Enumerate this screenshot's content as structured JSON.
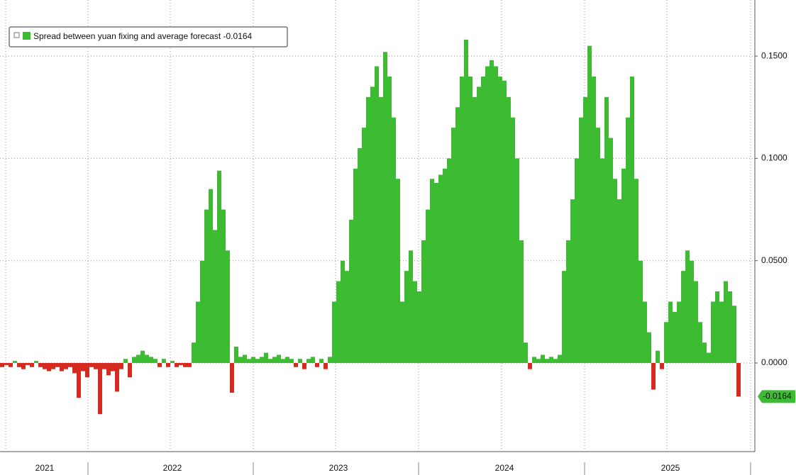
{
  "chart_data": {
    "type": "bar",
    "series": [
      {
        "name": "Spread between yuan fixing and average forecast -0.0164",
        "color": "#3dbb33",
        "neg_color": "#d42a1f",
        "values": [
          -0.002,
          -0.001,
          -0.002,
          0.001,
          -0.002,
          -0.003,
          -0.001,
          -0.002,
          0.001,
          -0.002,
          -0.003,
          -0.004,
          -0.003,
          -0.002,
          -0.004,
          -0.003,
          -0.002,
          -0.005,
          -0.017,
          -0.004,
          -0.007,
          -0.002,
          -0.003,
          -0.025,
          -0.003,
          -0.006,
          -0.004,
          -0.014,
          -0.003,
          0.002,
          -0.007,
          0.003,
          0.004,
          0.006,
          0.004,
          0.003,
          0.002,
          -0.002,
          0.002,
          -0.002,
          0.001,
          -0.002,
          -0.001,
          -0.002,
          -0.002,
          0.01,
          0.03,
          0.05,
          0.075,
          0.085,
          0.065,
          0.094,
          0.075,
          0.055,
          -0.0145,
          0.008,
          0.003,
          0.004,
          0.002,
          0.003,
          0.002,
          0.003,
          0.005,
          0.002,
          0.003,
          0.004,
          0.002,
          0.003,
          0.002,
          -0.002,
          0.002,
          -0.003,
          0.002,
          0.003,
          -0.002,
          0.002,
          -0.003,
          0.003,
          0.03,
          0.04,
          0.05,
          0.045,
          0.07,
          0.095,
          0.105,
          0.115,
          0.13,
          0.135,
          0.145,
          0.13,
          0.152,
          0.14,
          0.12,
          0.09,
          0.03,
          0.045,
          0.055,
          0.04,
          0.035,
          0.06,
          0.075,
          0.09,
          0.088,
          0.092,
          0.095,
          0.1,
          0.115,
          0.125,
          0.14,
          0.158,
          0.14,
          0.13,
          0.135,
          0.14,
          0.145,
          0.148,
          0.145,
          0.14,
          0.138,
          0.13,
          0.12,
          0.1,
          0.06,
          0.01,
          -0.003,
          0.003,
          0.002,
          0.004,
          0.002,
          0.003,
          0.002,
          0.004,
          0.045,
          0.06,
          0.08,
          0.1,
          0.12,
          0.13,
          0.155,
          0.14,
          0.115,
          0.1,
          0.13,
          0.11,
          0.09,
          0.08,
          0.095,
          0.12,
          0.14,
          0.09,
          0.05,
          0.03,
          0.015,
          -0.013,
          0.006,
          -0.003,
          0.02,
          0.03,
          0.025,
          0.03,
          0.045,
          0.055,
          0.05,
          0.04,
          0.02,
          0.01,
          0.005,
          0.03,
          0.035,
          0.03,
          0.04,
          0.035,
          0.028,
          -0.0164
        ]
      }
    ],
    "categories": [
      null,
      null,
      null,
      null,
      null,
      null,
      null,
      null,
      null,
      null,
      "2021",
      null,
      null,
      null,
      null,
      null,
      null,
      null,
      null,
      null,
      null,
      null,
      null,
      null,
      null,
      null,
      null,
      null,
      null,
      null,
      null,
      null,
      null,
      null,
      null,
      null,
      null,
      null,
      null,
      null,
      "2022",
      null,
      null,
      null,
      null,
      null,
      null,
      null,
      null,
      null,
      null,
      null,
      null,
      null,
      null,
      null,
      null,
      null,
      null,
      null,
      null,
      null,
      null,
      null,
      null,
      null,
      null,
      null,
      null,
      null,
      null,
      null,
      null,
      null,
      null,
      null,
      null,
      null,
      null,
      "2023",
      null,
      null,
      null,
      null,
      null,
      null,
      null,
      null,
      null,
      null,
      null,
      null,
      null,
      null,
      null,
      null,
      null,
      null,
      null,
      null,
      null,
      null,
      null,
      null,
      null,
      null,
      null,
      null,
      null,
      null,
      null,
      null,
      null,
      null,
      null,
      null,
      null,
      null,
      "2024",
      null,
      null,
      null,
      null,
      null,
      null,
      null,
      null,
      null,
      null,
      null,
      null,
      null,
      null,
      null,
      null,
      null,
      null,
      null,
      null,
      null,
      null,
      null,
      null,
      null,
      null,
      null,
      null,
      null,
      null,
      null,
      null,
      null,
      null,
      null,
      null,
      null,
      null,
      "2025",
      null,
      null,
      null,
      null,
      null,
      null,
      null,
      null,
      null,
      null,
      null,
      null,
      null,
      null,
      null,
      null
    ],
    "ylim": [
      -0.0433,
      0.1774
    ],
    "yticks": [
      {
        "value": 0,
        "label": "0.0000"
      },
      {
        "value": 0.05,
        "label": "0.0500"
      },
      {
        "value": 0.1,
        "label": "0.1000"
      },
      {
        "value": 0.15,
        "label": "0.1500"
      }
    ],
    "grid": true,
    "legend": "upper left"
  }
}
